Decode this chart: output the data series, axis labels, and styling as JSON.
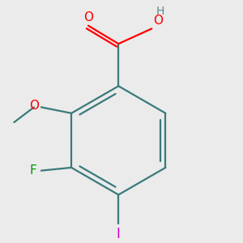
{
  "background_color": "#ebebeb",
  "bond_color": "#3a7a7a",
  "bond_width": 1.6,
  "figsize": [
    3.0,
    3.0
  ],
  "dpi": 100,
  "colors": {
    "C": "#3a7a7a",
    "O": "#ff0000",
    "F": "#009900",
    "I": "#cc00cc",
    "H": "#5a8a8a"
  }
}
